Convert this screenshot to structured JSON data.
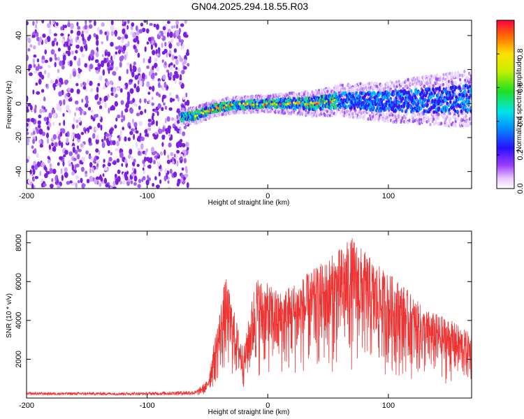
{
  "title": "GN04.2025.294.18.55.R03",
  "colors": {
    "snr_line": "#ee3333",
    "background_scatter": "#7a1fe0",
    "frame": "#000000"
  },
  "chart_data": [
    {
      "type": "heatmap",
      "title": "GN04.2025.294.18.55.R03",
      "xlabel": "Height of straight line (km)",
      "ylabel": "Frequency (Hz)",
      "xlim": [
        -200,
        169
      ],
      "ylim": [
        -50,
        49
      ],
      "x_ticks": [
        -200,
        -100,
        0,
        100
      ],
      "y_ticks": [
        -40,
        -20,
        0,
        20,
        40
      ],
      "noise_region_x": [
        -200,
        -66
      ],
      "ridge": {
        "description_points": [
          {
            "x": -72,
            "y": -8
          },
          {
            "x": -60,
            "y": -7
          },
          {
            "x": -45,
            "y": -3
          },
          {
            "x": -30,
            "y": -1
          },
          {
            "x": 0,
            "y": 0
          },
          {
            "x": 40,
            "y": 0
          },
          {
            "x": 60,
            "y": 2
          },
          {
            "x": 100,
            "y": 1
          },
          {
            "x": 140,
            "y": 2
          },
          {
            "x": 169,
            "y": 3
          }
        ]
      },
      "colorbar": {
        "label": "Normalized spectral amplitude",
        "range": [
          0.0,
          1.0
        ],
        "ticks": [
          "0.0",
          "0.2",
          "0.4",
          "0.6",
          "0.8"
        ]
      }
    },
    {
      "type": "line",
      "xlabel": "Height of straight line (km)",
      "ylabel": "SNR (10 * v/v)",
      "xlim": [
        -200,
        169
      ],
      "ylim": [
        0,
        8600
      ],
      "x_ticks": [
        -200,
        -100,
        0,
        100
      ],
      "y_ticks": [
        2000,
        4000,
        6000,
        8000
      ],
      "series": [
        {
          "name": "SNR",
          "envelope": [
            {
              "x": -200,
              "y": 250
            },
            {
              "x": -100,
              "y": 250
            },
            {
              "x": -60,
              "y": 350
            },
            {
              "x": -50,
              "y": 900
            },
            {
              "x": -35,
              "y": 6300
            },
            {
              "x": -20,
              "y": 2500
            },
            {
              "x": -10,
              "y": 6300
            },
            {
              "x": 10,
              "y": 5500
            },
            {
              "x": 30,
              "y": 6300
            },
            {
              "x": 50,
              "y": 7200
            },
            {
              "x": 70,
              "y": 8300
            },
            {
              "x": 90,
              "y": 6900
            },
            {
              "x": 110,
              "y": 6000
            },
            {
              "x": 130,
              "y": 4600
            },
            {
              "x": 150,
              "y": 4100
            },
            {
              "x": 169,
              "y": 3300
            }
          ]
        }
      ]
    }
  ]
}
